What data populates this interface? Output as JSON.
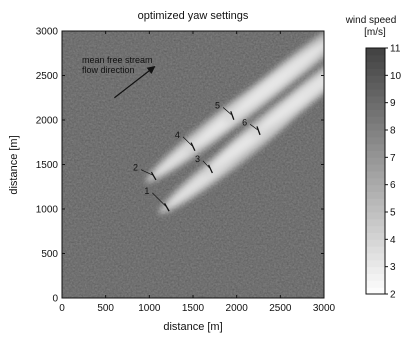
{
  "chart_data": {
    "type": "heatmap",
    "title": "optimized yaw settings",
    "xlabel": "distance [m]",
    "ylabel": "distance [m]",
    "xlim": [
      0,
      3000
    ],
    "ylim": [
      0,
      3000
    ],
    "x_ticks": [
      "0",
      "500",
      "1000",
      "1500",
      "2000",
      "2500",
      "3000"
    ],
    "y_ticks": [
      "0",
      "500",
      "1000",
      "1500",
      "2000",
      "2500",
      "3000"
    ],
    "annotation": [
      "mean free stream",
      "flow direction"
    ],
    "flow_arrow": {
      "from": [
        600,
        2250
      ],
      "to": [
        1060,
        2600
      ]
    },
    "colorbar": {
      "label": [
        "wind speed",
        "[m/s]"
      ],
      "min": 2,
      "max": 11,
      "ticks": [
        "2",
        "3",
        "4",
        "5",
        "6",
        "7",
        "8",
        "9",
        "10",
        "11"
      ]
    },
    "background_speed_ms": 8.3,
    "turbines": [
      {
        "label": "1",
        "x": 1200,
        "y": 1020,
        "label_x": 1000,
        "label_y": 1170,
        "yaw_deg": 30
      },
      {
        "label": "2",
        "x": 1050,
        "y": 1370,
        "label_x": 870,
        "label_y": 1430,
        "yaw_deg": 30
      },
      {
        "label": "3",
        "x": 1700,
        "y": 1450,
        "label_x": 1580,
        "label_y": 1530,
        "yaw_deg": 25
      },
      {
        "label": "4",
        "x": 1500,
        "y": 1700,
        "label_x": 1350,
        "label_y": 1800,
        "yaw_deg": 25
      },
      {
        "label": "5",
        "x": 1950,
        "y": 2050,
        "label_x": 1810,
        "label_y": 2130,
        "yaw_deg": 20
      },
      {
        "label": "6",
        "x": 2250,
        "y": 1880,
        "label_x": 2120,
        "label_y": 1940,
        "yaw_deg": 20
      }
    ]
  }
}
